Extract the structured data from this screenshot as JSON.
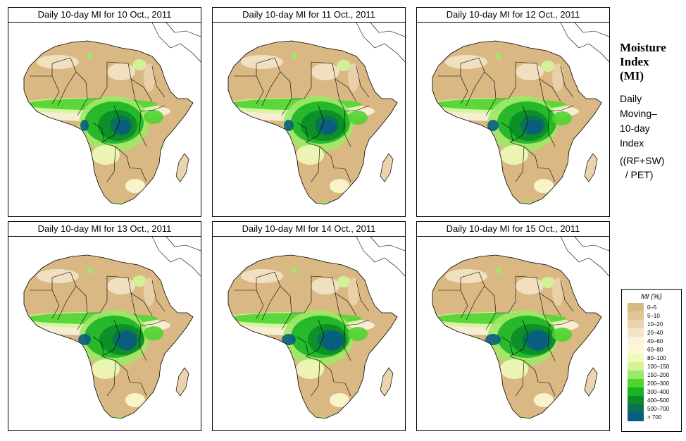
{
  "panels": [
    {
      "title": "Daily 10-day MI for  10 Oct., 2011",
      "date": "10 Oct., 2011"
    },
    {
      "title": "Daily 10-day MI for  11 Oct., 2011",
      "date": "11 Oct., 2011"
    },
    {
      "title": "Daily 10-day MI for  12 Oct., 2011",
      "date": "12 Oct., 2011"
    },
    {
      "title": "Daily 10-day MI for  13 Oct., 2011",
      "date": "13 Oct., 2011"
    },
    {
      "title": "Daily 10-day MI for  14 Oct., 2011",
      "date": "14 Oct., 2011"
    },
    {
      "title": "Daily 10-day MI for  15 Oct., 2011",
      "date": "15 Oct., 2011"
    }
  ],
  "sidebar": {
    "title_lines": [
      "Moisture",
      "Index",
      "(MI)"
    ],
    "description_lines": [
      "Daily",
      "Moving–",
      "10-day",
      "Index"
    ],
    "formula_lines": [
      "((RF+SW)",
      "  / PET)"
    ]
  },
  "legend": {
    "title": "MI (%)",
    "classes": [
      {
        "label": "0–5",
        "color": "#d9b883"
      },
      {
        "label": "5–10",
        "color": "#e1c597"
      },
      {
        "label": "10–20",
        "color": "#ead3ad"
      },
      {
        "label": "20–40",
        "color": "#f2e4c6"
      },
      {
        "label": "40–60",
        "color": "#faf3dc"
      },
      {
        "label": "60–80",
        "color": "#fcfad0"
      },
      {
        "label": "80–100",
        "color": "#eefaba"
      },
      {
        "label": "100–150",
        "color": "#d2f59a"
      },
      {
        "label": "150–200",
        "color": "#9ee868"
      },
      {
        "label": "200–300",
        "color": "#4fd430"
      },
      {
        "label": "300–400",
        "color": "#18b424"
      },
      {
        "label": "400–500",
        "color": "#0c8c28"
      },
      {
        "label": "500–700",
        "color": "#0a7058"
      },
      {
        "label": "> 700",
        "color": "#0a5c82"
      }
    ]
  }
}
